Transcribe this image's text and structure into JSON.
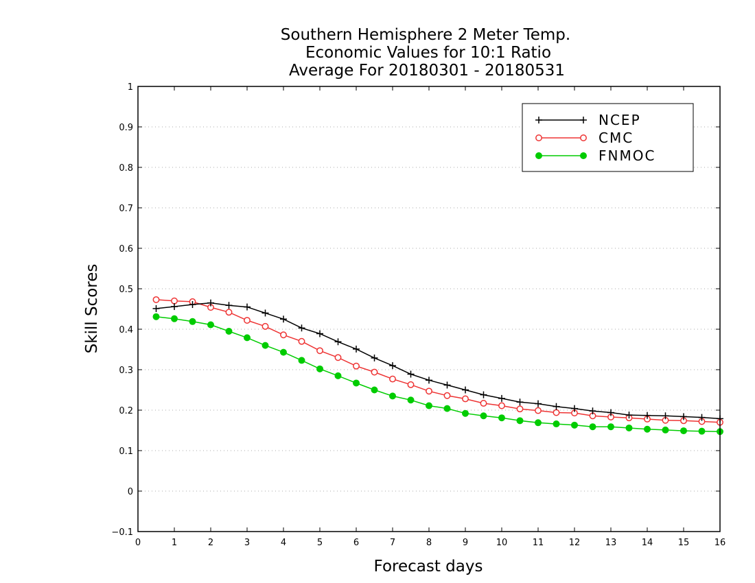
{
  "chart_data": {
    "type": "line",
    "title": [
      "Southern Hemisphere 2 Meter Temp.",
      "Economic Values for 10:1 Ratio",
      "Average For 20180301 - 20180531"
    ],
    "xlabel": "Forecast days",
    "ylabel": "Skill Scores",
    "xlim": [
      0,
      16
    ],
    "ylim": [
      -0.1,
      1
    ],
    "xticks": [
      "0",
      "1",
      "2",
      "3",
      "4",
      "5",
      "6",
      "7",
      "8",
      "9",
      "10",
      "11",
      "12",
      "13",
      "14",
      "15",
      "16"
    ],
    "yticks": [
      "−0.1",
      "0",
      "0.1",
      "0.2",
      "0.3",
      "0.4",
      "0.5",
      "0.6",
      "0.7",
      "0.8",
      "0.9",
      "1"
    ],
    "grid": true,
    "legend_position": "top-right",
    "x": [
      0.5,
      1,
      1.5,
      2,
      2.5,
      3,
      3.5,
      4,
      4.5,
      5,
      5.5,
      6,
      6.5,
      7,
      7.5,
      8,
      8.5,
      9,
      9.5,
      10,
      10.5,
      11,
      11.5,
      12,
      12.5,
      13,
      13.5,
      14,
      14.5,
      15,
      15.5,
      16
    ],
    "series": [
      {
        "name": "NCEP",
        "color": "#000000",
        "marker": "plus",
        "values": [
          0.451,
          0.456,
          0.461,
          0.465,
          0.459,
          0.455,
          0.44,
          0.425,
          0.403,
          0.389,
          0.369,
          0.351,
          0.329,
          0.31,
          0.289,
          0.274,
          0.262,
          0.25,
          0.238,
          0.229,
          0.22,
          0.216,
          0.209,
          0.204,
          0.198,
          0.194,
          0.188,
          0.187,
          0.186,
          0.184,
          0.182,
          0.179
        ]
      },
      {
        "name": "CMC",
        "color": "#ee3333",
        "marker": "open-circle",
        "values": [
          0.473,
          0.47,
          0.468,
          0.454,
          0.442,
          0.422,
          0.407,
          0.386,
          0.37,
          0.347,
          0.33,
          0.309,
          0.294,
          0.277,
          0.263,
          0.247,
          0.236,
          0.228,
          0.217,
          0.211,
          0.203,
          0.199,
          0.194,
          0.193,
          0.186,
          0.183,
          0.181,
          0.178,
          0.175,
          0.174,
          0.172,
          0.17
        ]
      },
      {
        "name": "FNMOC",
        "color": "#00cc00",
        "marker": "filled-circle",
        "values": [
          0.431,
          0.426,
          0.419,
          0.411,
          0.395,
          0.379,
          0.36,
          0.343,
          0.323,
          0.302,
          0.285,
          0.267,
          0.25,
          0.235,
          0.225,
          0.211,
          0.204,
          0.192,
          0.186,
          0.181,
          0.174,
          0.169,
          0.166,
          0.163,
          0.159,
          0.159,
          0.156,
          0.153,
          0.151,
          0.149,
          0.148,
          0.147
        ]
      }
    ]
  }
}
